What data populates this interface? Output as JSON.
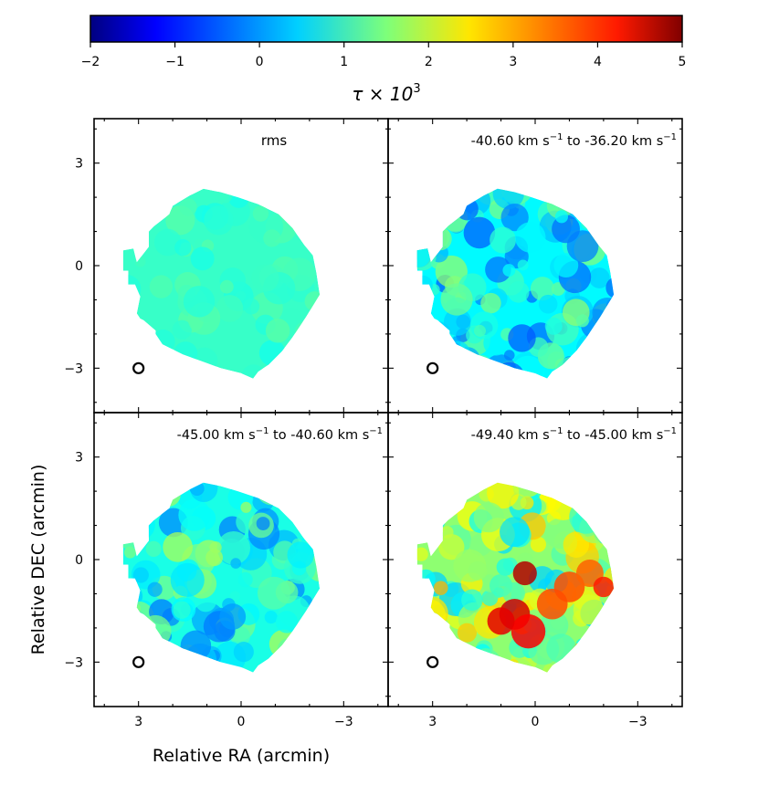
{
  "chart_data": {
    "type": "heatmap",
    "colorbar": {
      "colormap": "jet",
      "label_base": "τ × 10",
      "label_exp": "3",
      "range": [
        -2,
        5
      ],
      "ticks": [
        -2,
        -1,
        0,
        1,
        2,
        3,
        4,
        5
      ],
      "tick_labels": [
        "−2",
        "−1",
        "0",
        "1",
        "2",
        "3",
        "4",
        "5"
      ]
    },
    "xlabel": "Relative RA (arcmin)",
    "ylabel": "Relative DEC (arcmin)",
    "xlim": [
      4.3,
      -4.3
    ],
    "ylim": [
      -4.3,
      4.3
    ],
    "xticks": [
      3,
      0,
      -3
    ],
    "xtick_labels": [
      "3",
      "0",
      "−3"
    ],
    "yticks": [
      3,
      0,
      -3
    ],
    "ytick_labels": [
      "3",
      "0",
      "−3"
    ],
    "panels": [
      {
        "title": "rms",
        "mean_tau": 1.0,
        "spread": 0.25
      },
      {
        "title_prefix": "-40.60 km s",
        "title_mid": " to -36.20 km s",
        "unit_exp": "−1",
        "mean_tau": 0.6,
        "spread": 1.1
      },
      {
        "title_prefix": "-45.00 km s",
        "title_mid": " to -40.60 km s",
        "unit_exp": "−1",
        "mean_tau": 0.8,
        "spread": 1.1
      },
      {
        "title_prefix": "-49.40 km s",
        "title_mid": " to -45.00 km s",
        "unit_exp": "−1",
        "mean_tau": 1.6,
        "spread": 1.3
      }
    ],
    "beam_position": [
      3,
      -3
    ]
  }
}
